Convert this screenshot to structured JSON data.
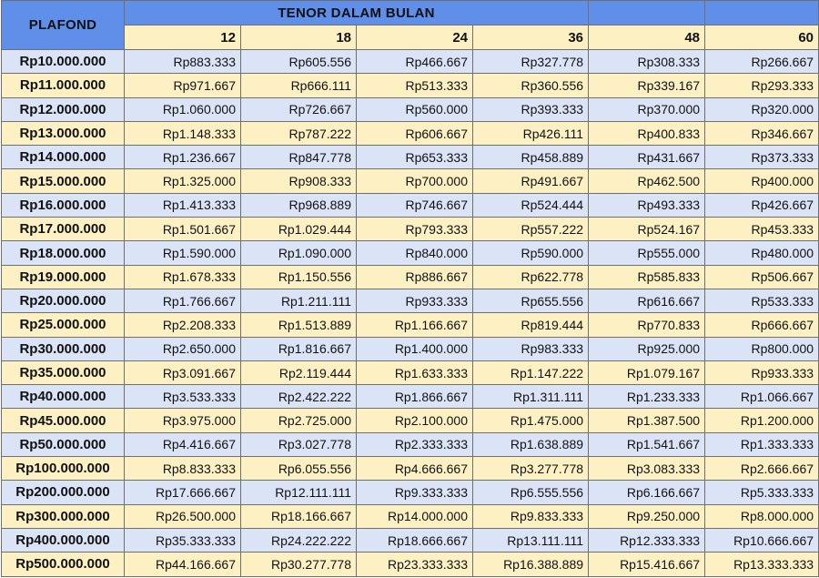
{
  "header": {
    "plafond_label": "PLAFOND",
    "tenor_label": "TENOR DALAM BULAN",
    "terms": [
      "12",
      "18",
      "24",
      "36",
      "48",
      "60"
    ]
  },
  "rows": [
    {
      "plafond": "Rp10.000.000",
      "values": [
        "Rp883.333",
        "Rp605.556",
        "Rp466.667",
        "Rp327.778",
        "Rp308.333",
        "Rp266.667"
      ]
    },
    {
      "plafond": "Rp11.000.000",
      "values": [
        "Rp971.667",
        "Rp666.111",
        "Rp513.333",
        "Rp360.556",
        "Rp339.167",
        "Rp293.333"
      ]
    },
    {
      "plafond": "Rp12.000.000",
      "values": [
        "Rp1.060.000",
        "Rp726.667",
        "Rp560.000",
        "Rp393.333",
        "Rp370.000",
        "Rp320.000"
      ]
    },
    {
      "plafond": "Rp13.000.000",
      "values": [
        "Rp1.148.333",
        "Rp787.222",
        "Rp606.667",
        "Rp426.111",
        "Rp400.833",
        "Rp346.667"
      ]
    },
    {
      "plafond": "Rp14.000.000",
      "values": [
        "Rp1.236.667",
        "Rp847.778",
        "Rp653.333",
        "Rp458.889",
        "Rp431.667",
        "Rp373.333"
      ]
    },
    {
      "plafond": "Rp15.000.000",
      "values": [
        "Rp1.325.000",
        "Rp908.333",
        "Rp700.000",
        "Rp491.667",
        "Rp462.500",
        "Rp400.000"
      ]
    },
    {
      "plafond": "Rp16.000.000",
      "values": [
        "Rp1.413.333",
        "Rp968.889",
        "Rp746.667",
        "Rp524.444",
        "Rp493.333",
        "Rp426.667"
      ]
    },
    {
      "plafond": "Rp17.000.000",
      "values": [
        "Rp1.501.667",
        "Rp1.029.444",
        "Rp793.333",
        "Rp557.222",
        "Rp524.167",
        "Rp453.333"
      ]
    },
    {
      "plafond": "Rp18.000.000",
      "values": [
        "Rp1.590.000",
        "Rp1.090.000",
        "Rp840.000",
        "Rp590.000",
        "Rp555.000",
        "Rp480.000"
      ]
    },
    {
      "plafond": "Rp19.000.000",
      "values": [
        "Rp1.678.333",
        "Rp1.150.556",
        "Rp886.667",
        "Rp622.778",
        "Rp585.833",
        "Rp506.667"
      ]
    },
    {
      "plafond": "Rp20.000.000",
      "values": [
        "Rp1.766.667",
        "Rp1.211.111",
        "Rp933.333",
        "Rp655.556",
        "Rp616.667",
        "Rp533.333"
      ]
    },
    {
      "plafond": "Rp25.000.000",
      "values": [
        "Rp2.208.333",
        "Rp1.513.889",
        "Rp1.166.667",
        "Rp819.444",
        "Rp770.833",
        "Rp666.667"
      ]
    },
    {
      "plafond": "Rp30.000.000",
      "values": [
        "Rp2.650.000",
        "Rp1.816.667",
        "Rp1.400.000",
        "Rp983.333",
        "Rp925.000",
        "Rp800.000"
      ]
    },
    {
      "plafond": "Rp35.000.000",
      "values": [
        "Rp3.091.667",
        "Rp2.119.444",
        "Rp1.633.333",
        "Rp1.147.222",
        "Rp1.079.167",
        "Rp933.333"
      ]
    },
    {
      "plafond": "Rp40.000.000",
      "values": [
        "Rp3.533.333",
        "Rp2.422.222",
        "Rp1.866.667",
        "Rp1.311.111",
        "Rp1.233.333",
        "Rp1.066.667"
      ]
    },
    {
      "plafond": "Rp45.000.000",
      "values": [
        "Rp3.975.000",
        "Rp2.725.000",
        "Rp2.100.000",
        "Rp1.475.000",
        "Rp1.387.500",
        "Rp1.200.000"
      ]
    },
    {
      "plafond": "Rp50.000.000",
      "values": [
        "Rp4.416.667",
        "Rp3.027.778",
        "Rp2.333.333",
        "Rp1.638.889",
        "Rp1.541.667",
        "Rp1.333.333"
      ]
    },
    {
      "plafond": "Rp100.000.000",
      "values": [
        "Rp8.833.333",
        "Rp6.055.556",
        "Rp4.666.667",
        "Rp3.277.778",
        "Rp3.083.333",
        "Rp2.666.667"
      ]
    },
    {
      "plafond": "Rp200.000.000",
      "values": [
        "Rp17.666.667",
        "Rp12.111.111",
        "Rp9.333.333",
        "Rp6.555.556",
        "Rp6.166.667",
        "Rp5.333.333"
      ]
    },
    {
      "plafond": "Rp300.000.000",
      "values": [
        "Rp26.500.000",
        "Rp18.166.667",
        "Rp14.000.000",
        "Rp9.833.333",
        "Rp9.250.000",
        "Rp8.000.000"
      ]
    },
    {
      "plafond": "Rp400.000.000",
      "values": [
        "Rp35.333.333",
        "Rp24.222.222",
        "Rp18.666.667",
        "Rp13.111.111",
        "Rp12.333.333",
        "Rp10.666.667"
      ]
    },
    {
      "plafond": "Rp500.000.000",
      "values": [
        "Rp44.166.667",
        "Rp30.277.778",
        "Rp23.333.333",
        "Rp16.388.889",
        "Rp15.416.667",
        "Rp13.333.333"
      ]
    }
  ],
  "colors": {
    "header_blue": "#5f8fe8",
    "row_blue": "#dbe4f7",
    "row_yellow": "#fdf1c4"
  }
}
